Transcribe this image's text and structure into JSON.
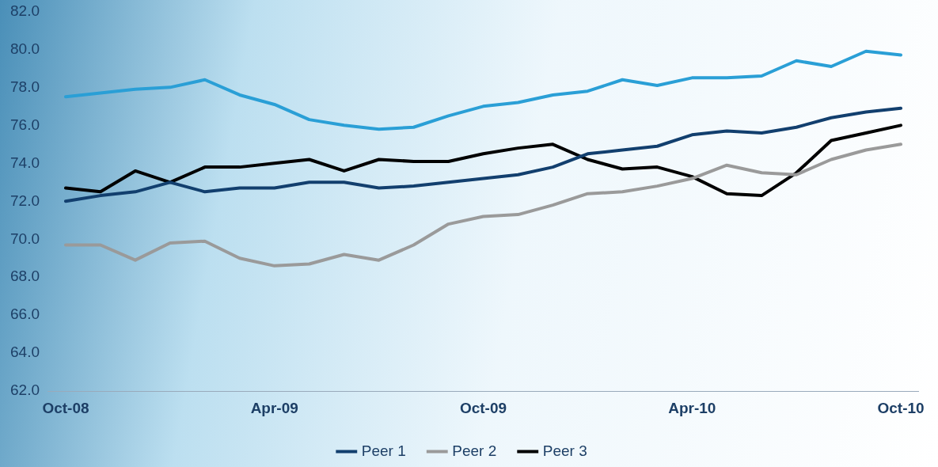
{
  "chart_data": {
    "type": "line",
    "categories": [
      "Oct-08",
      null,
      null,
      null,
      null,
      null,
      "Apr-09",
      null,
      null,
      null,
      null,
      null,
      "Oct-09",
      null,
      null,
      null,
      null,
      null,
      "Apr-10",
      null,
      null,
      null,
      null,
      null,
      "Oct-10"
    ],
    "series": [
      {
        "color": "#2a9fd6",
        "values": [
          77.5,
          77.7,
          77.9,
          78.0,
          78.4,
          77.6,
          77.1,
          76.3,
          76.0,
          75.8,
          75.9,
          76.5,
          77.0,
          77.2,
          77.6,
          77.8,
          78.4,
          78.1,
          78.5,
          78.5,
          78.6,
          79.4,
          79.1,
          79.9,
          79.7
        ]
      },
      {
        "name": "Peer 1",
        "color": "#123f6e",
        "values": [
          72.0,
          72.3,
          72.5,
          73.0,
          72.5,
          72.7,
          72.7,
          73.0,
          73.0,
          72.7,
          72.8,
          73.0,
          73.2,
          73.4,
          73.8,
          74.5,
          74.7,
          74.9,
          75.5,
          75.7,
          75.6,
          75.9,
          76.4,
          76.7,
          76.9
        ]
      },
      {
        "name": "Peer 2",
        "color": "#9a9a9a",
        "values": [
          69.7,
          69.7,
          68.9,
          69.8,
          69.9,
          69.0,
          68.6,
          68.7,
          69.2,
          68.9,
          69.7,
          70.8,
          71.2,
          71.3,
          71.8,
          72.4,
          72.5,
          72.8,
          73.2,
          73.9,
          73.5,
          73.4,
          74.2,
          74.7,
          75.0
        ]
      },
      {
        "name": "Peer 3",
        "color": "#000000",
        "values": [
          72.7,
          72.5,
          73.6,
          73.0,
          73.8,
          73.8,
          74.0,
          74.2,
          73.6,
          74.2,
          74.1,
          74.1,
          74.5,
          74.8,
          75.0,
          74.2,
          73.7,
          73.8,
          73.3,
          72.4,
          72.3,
          73.5,
          75.2,
          75.6,
          76.0
        ]
      }
    ],
    "ylim": [
      62,
      82
    ],
    "yticks": [
      {
        "value": 62,
        "label": "62.0"
      },
      {
        "value": 64,
        "label": "64.0"
      },
      {
        "value": 66,
        "label": "66.0"
      },
      {
        "value": 68,
        "label": "68.0"
      },
      {
        "value": 70,
        "label": "70.0"
      },
      {
        "value": 72,
        "label": "72.0"
      },
      {
        "value": 74,
        "label": "74.0"
      },
      {
        "value": 76,
        "label": "76.0"
      },
      {
        "value": 78,
        "label": "78.0"
      },
      {
        "value": 80,
        "label": "80.0"
      },
      {
        "value": 82,
        "label": "82.0"
      }
    ],
    "grid": false,
    "legend": "bottom",
    "marker": "none",
    "line_style": "solid"
  }
}
